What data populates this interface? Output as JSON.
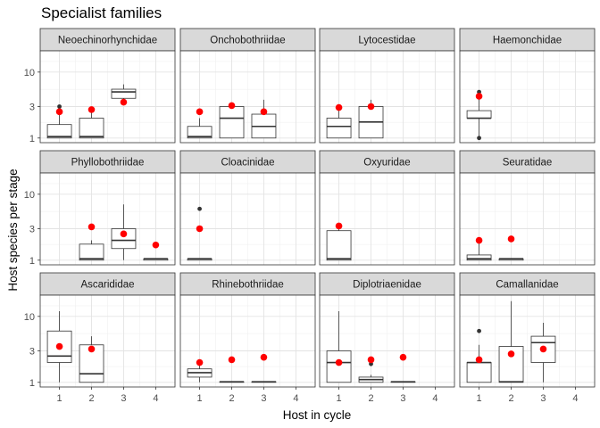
{
  "chart_data": {
    "type": "boxplot",
    "title": "Specialist families",
    "xlabel": "Host in cycle",
    "ylabel": "Host species per stage",
    "x_categories": [
      "1",
      "2",
      "3",
      "4"
    ],
    "y_scale": "log",
    "y_ticks": [
      1,
      3,
      10
    ],
    "y_tick_labels": [
      "1",
      "3",
      "10"
    ],
    "ylim": [
      0.85,
      21
    ],
    "grid": true,
    "mean_marker_color": "#ff0000",
    "box_fill": "#ffffff",
    "box_line": "#333333",
    "strip_fill": "#d9d9d9",
    "panels": [
      {
        "name": "Neoechinorhynchidae",
        "boxes": [
          {
            "x": 1,
            "min": 1,
            "q1": 1,
            "median": 1.05,
            "q3": 1.6,
            "max": 2.4,
            "outliers": [
              3.0
            ],
            "mean": 2.5
          },
          {
            "x": 2,
            "min": 1,
            "q1": 1,
            "median": 1.05,
            "q3": 2.0,
            "max": 2.5,
            "outliers": [],
            "mean": 2.7
          },
          {
            "x": 3,
            "min": 3.5,
            "q1": 4.0,
            "median": 5.0,
            "q3": 5.5,
            "max": 6.5,
            "outliers": [],
            "mean": 3.5
          }
        ]
      },
      {
        "name": "Onchobothriidae",
        "boxes": [
          {
            "x": 1,
            "min": 1,
            "q1": 1,
            "median": 1.05,
            "q3": 1.5,
            "max": 2.0,
            "outliers": [],
            "mean": 2.5
          },
          {
            "x": 2,
            "min": 1,
            "q1": 1,
            "median": 2.0,
            "q3": 3.0,
            "max": 3.0,
            "outliers": [],
            "mean": 3.1
          },
          {
            "x": 3,
            "min": 1,
            "q1": 1,
            "median": 1.5,
            "q3": 2.3,
            "max": 3.8,
            "outliers": [],
            "mean": 2.5
          }
        ]
      },
      {
        "name": "Lytocestidae",
        "boxes": [
          {
            "x": 1,
            "min": 1,
            "q1": 1,
            "median": 1.5,
            "q3": 2.0,
            "max": 3.0,
            "outliers": [],
            "mean": 2.9
          },
          {
            "x": 2,
            "min": 1,
            "q1": 1,
            "median": 1.75,
            "q3": 3.0,
            "max": 3.8,
            "outliers": [],
            "mean": 3.0
          }
        ]
      },
      {
        "name": "Haemonchidae",
        "boxes": [
          {
            "x": 1,
            "min": 1,
            "q1": 2.0,
            "median": 2.0,
            "q3": 2.6,
            "max": 4.0,
            "outliers": [
              5.0,
              1.0
            ],
            "mean": 4.3
          }
        ]
      },
      {
        "name": "Phyllobothriidae",
        "boxes": [
          {
            "x": 2,
            "min": 1,
            "q1": 1,
            "median": 1.05,
            "q3": 1.75,
            "max": 2.0,
            "outliers": [],
            "mean": 3.2
          },
          {
            "x": 3,
            "min": 1,
            "q1": 1.5,
            "median": 2.0,
            "q3": 3.0,
            "max": 7.0,
            "outliers": [],
            "mean": 2.5
          },
          {
            "x": 4,
            "min": 1,
            "q1": 1,
            "median": 1.05,
            "q3": 1.05,
            "max": 1.05,
            "outliers": [],
            "mean": 1.7
          }
        ]
      },
      {
        "name": "Cloacinidae",
        "boxes": [
          {
            "x": 1,
            "min": 1,
            "q1": 1,
            "median": 1.05,
            "q3": 1.05,
            "max": 1.05,
            "outliers": [
              6.0
            ],
            "mean": 3.0
          }
        ]
      },
      {
        "name": "Oxyuridae",
        "boxes": [
          {
            "x": 1,
            "min": 1,
            "q1": 1,
            "median": 1.05,
            "q3": 2.8,
            "max": 3.3,
            "outliers": [],
            "mean": 3.3
          }
        ]
      },
      {
        "name": "Seuratidae",
        "boxes": [
          {
            "x": 1,
            "min": 1,
            "q1": 1,
            "median": 1.05,
            "q3": 1.2,
            "max": 2.0,
            "outliers": [],
            "mean": 2.0
          },
          {
            "x": 2,
            "min": 1,
            "q1": 1,
            "median": 1.05,
            "q3": 1.05,
            "max": 1.05,
            "outliers": [],
            "mean": 2.1
          }
        ]
      },
      {
        "name": "Ascarididae",
        "boxes": [
          {
            "x": 1,
            "min": 1,
            "q1": 2.0,
            "median": 2.5,
            "q3": 6.0,
            "max": 12.0,
            "outliers": [],
            "mean": 3.5
          },
          {
            "x": 2,
            "min": 1,
            "q1": 1,
            "median": 1.35,
            "q3": 3.7,
            "max": 5.0,
            "outliers": [],
            "mean": 3.2
          }
        ]
      },
      {
        "name": "Rhinebothriidae",
        "boxes": [
          {
            "x": 1,
            "min": 1,
            "q1": 1.2,
            "median": 1.4,
            "q3": 1.6,
            "max": 2.0,
            "outliers": [],
            "mean": 2.0
          },
          {
            "x": 2,
            "min": 1,
            "q1": 1,
            "median": 1.02,
            "q3": 1.02,
            "max": 1.02,
            "outliers": [],
            "mean": 2.2
          },
          {
            "x": 3,
            "min": 1,
            "q1": 1,
            "median": 1.02,
            "q3": 1.02,
            "max": 1.02,
            "outliers": [],
            "mean": 2.4
          }
        ]
      },
      {
        "name": "Diplotriaenidae",
        "boxes": [
          {
            "x": 1,
            "min": 1,
            "q1": 1,
            "median": 2.0,
            "q3": 3.0,
            "max": 12.0,
            "outliers": [],
            "mean": 2.0
          },
          {
            "x": 2,
            "min": 1,
            "q1": 1,
            "median": 1.1,
            "q3": 1.2,
            "max": 1.3,
            "outliers": [
              1.9
            ],
            "mean": 2.2
          },
          {
            "x": 3,
            "min": 1,
            "q1": 1,
            "median": 1.02,
            "q3": 1.02,
            "max": 1.02,
            "outliers": [],
            "mean": 2.4
          }
        ]
      },
      {
        "name": "Camallanidae",
        "boxes": [
          {
            "x": 1,
            "min": 1,
            "q1": 1,
            "median": 2.0,
            "q3": 2.0,
            "max": 3.7,
            "outliers": [
              6.0
            ],
            "mean": 2.2
          },
          {
            "x": 2,
            "min": 1,
            "q1": 1,
            "median": 1.02,
            "q3": 3.5,
            "max": 17.0,
            "outliers": [],
            "mean": 2.7
          },
          {
            "x": 3,
            "min": 1,
            "q1": 2.0,
            "median": 4.0,
            "q3": 5.0,
            "max": 8.0,
            "outliers": [],
            "mean": 3.2
          }
        ]
      }
    ]
  }
}
